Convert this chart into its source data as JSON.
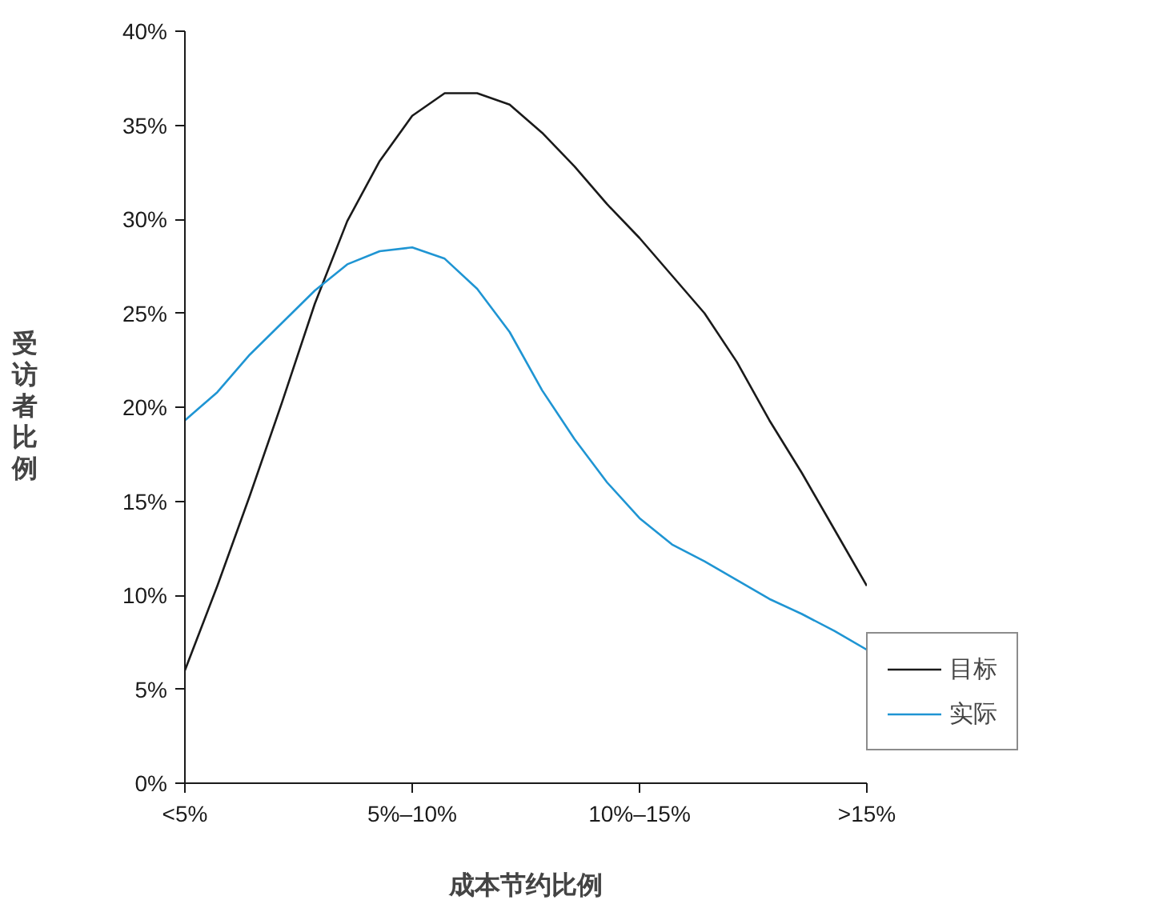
{
  "chart_data": {
    "type": "line",
    "xlabel": "成本节约比例",
    "ylabel": "受访者比例",
    "categories": [
      "<5%",
      null,
      null,
      null,
      null,
      null,
      null,
      "5%–10%",
      null,
      null,
      null,
      null,
      null,
      null,
      "10%–15%",
      null,
      null,
      null,
      null,
      null,
      null,
      ">15%"
    ],
    "ylim": [
      0,
      40
    ],
    "yticks": [
      {
        "value": 0,
        "label": "0%"
      },
      {
        "value": 5,
        "label": "5%"
      },
      {
        "value": 10,
        "label": "10%"
      },
      {
        "value": 15,
        "label": "15%"
      },
      {
        "value": 20,
        "label": "20%"
      },
      {
        "value": 25,
        "label": "25%"
      },
      {
        "value": 30,
        "label": "30%"
      },
      {
        "value": 35,
        "label": "35%"
      },
      {
        "value": 40,
        "label": "40%"
      }
    ],
    "grid": false,
    "legend": "right",
    "line_style": "solid",
    "series": [
      {
        "name": "目标",
        "color": "#1a1a1a",
        "values": [
          6.0,
          10.5,
          15.3,
          20.3,
          25.5,
          29.9,
          33.1,
          35.5,
          36.7,
          36.7,
          36.1,
          34.6,
          32.8,
          30.8,
          29.0,
          27.0,
          25.0,
          22.4,
          19.3,
          16.5,
          13.5,
          10.5
        ]
      },
      {
        "name": "实际",
        "color": "#1f95d3",
        "values": [
          19.3,
          20.8,
          22.8,
          24.5,
          26.2,
          27.6,
          28.3,
          28.5,
          27.9,
          26.3,
          24.0,
          20.9,
          18.3,
          16.0,
          14.1,
          12.7,
          11.8,
          10.8,
          9.8,
          9.0,
          8.1,
          7.1
        ]
      }
    ]
  }
}
